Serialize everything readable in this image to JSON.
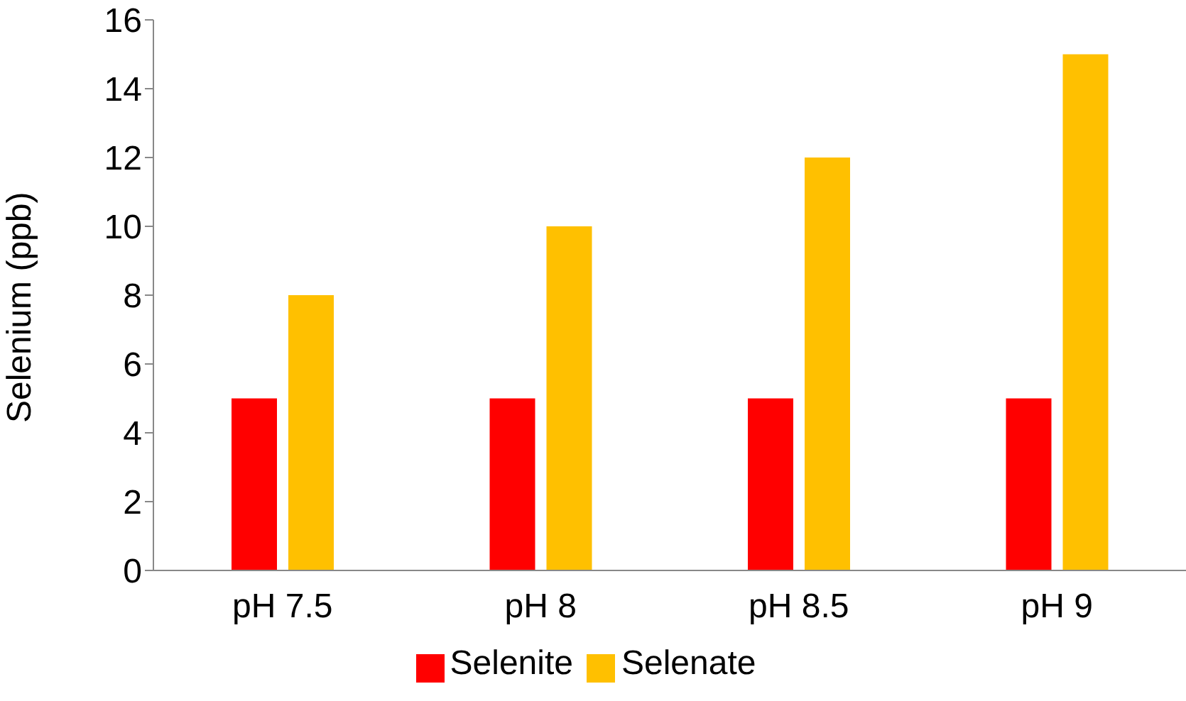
{
  "chart_data": {
    "type": "bar",
    "ylabel": "Selenium (ppb)",
    "categories": [
      "pH 7.5",
      "pH 8",
      "pH 8.5",
      "pH 9"
    ],
    "series": [
      {
        "name": "Selenite",
        "color": "#ff0000",
        "values": [
          5,
          5,
          5,
          5
        ]
      },
      {
        "name": "Selenate",
        "color": "#ffc000",
        "values": [
          8,
          10,
          12,
          15
        ]
      }
    ],
    "ylim": [
      0,
      16
    ],
    "yticks": [
      0,
      2,
      4,
      6,
      8,
      10,
      12,
      14,
      16
    ],
    "grid": false,
    "legend": "bottom"
  }
}
